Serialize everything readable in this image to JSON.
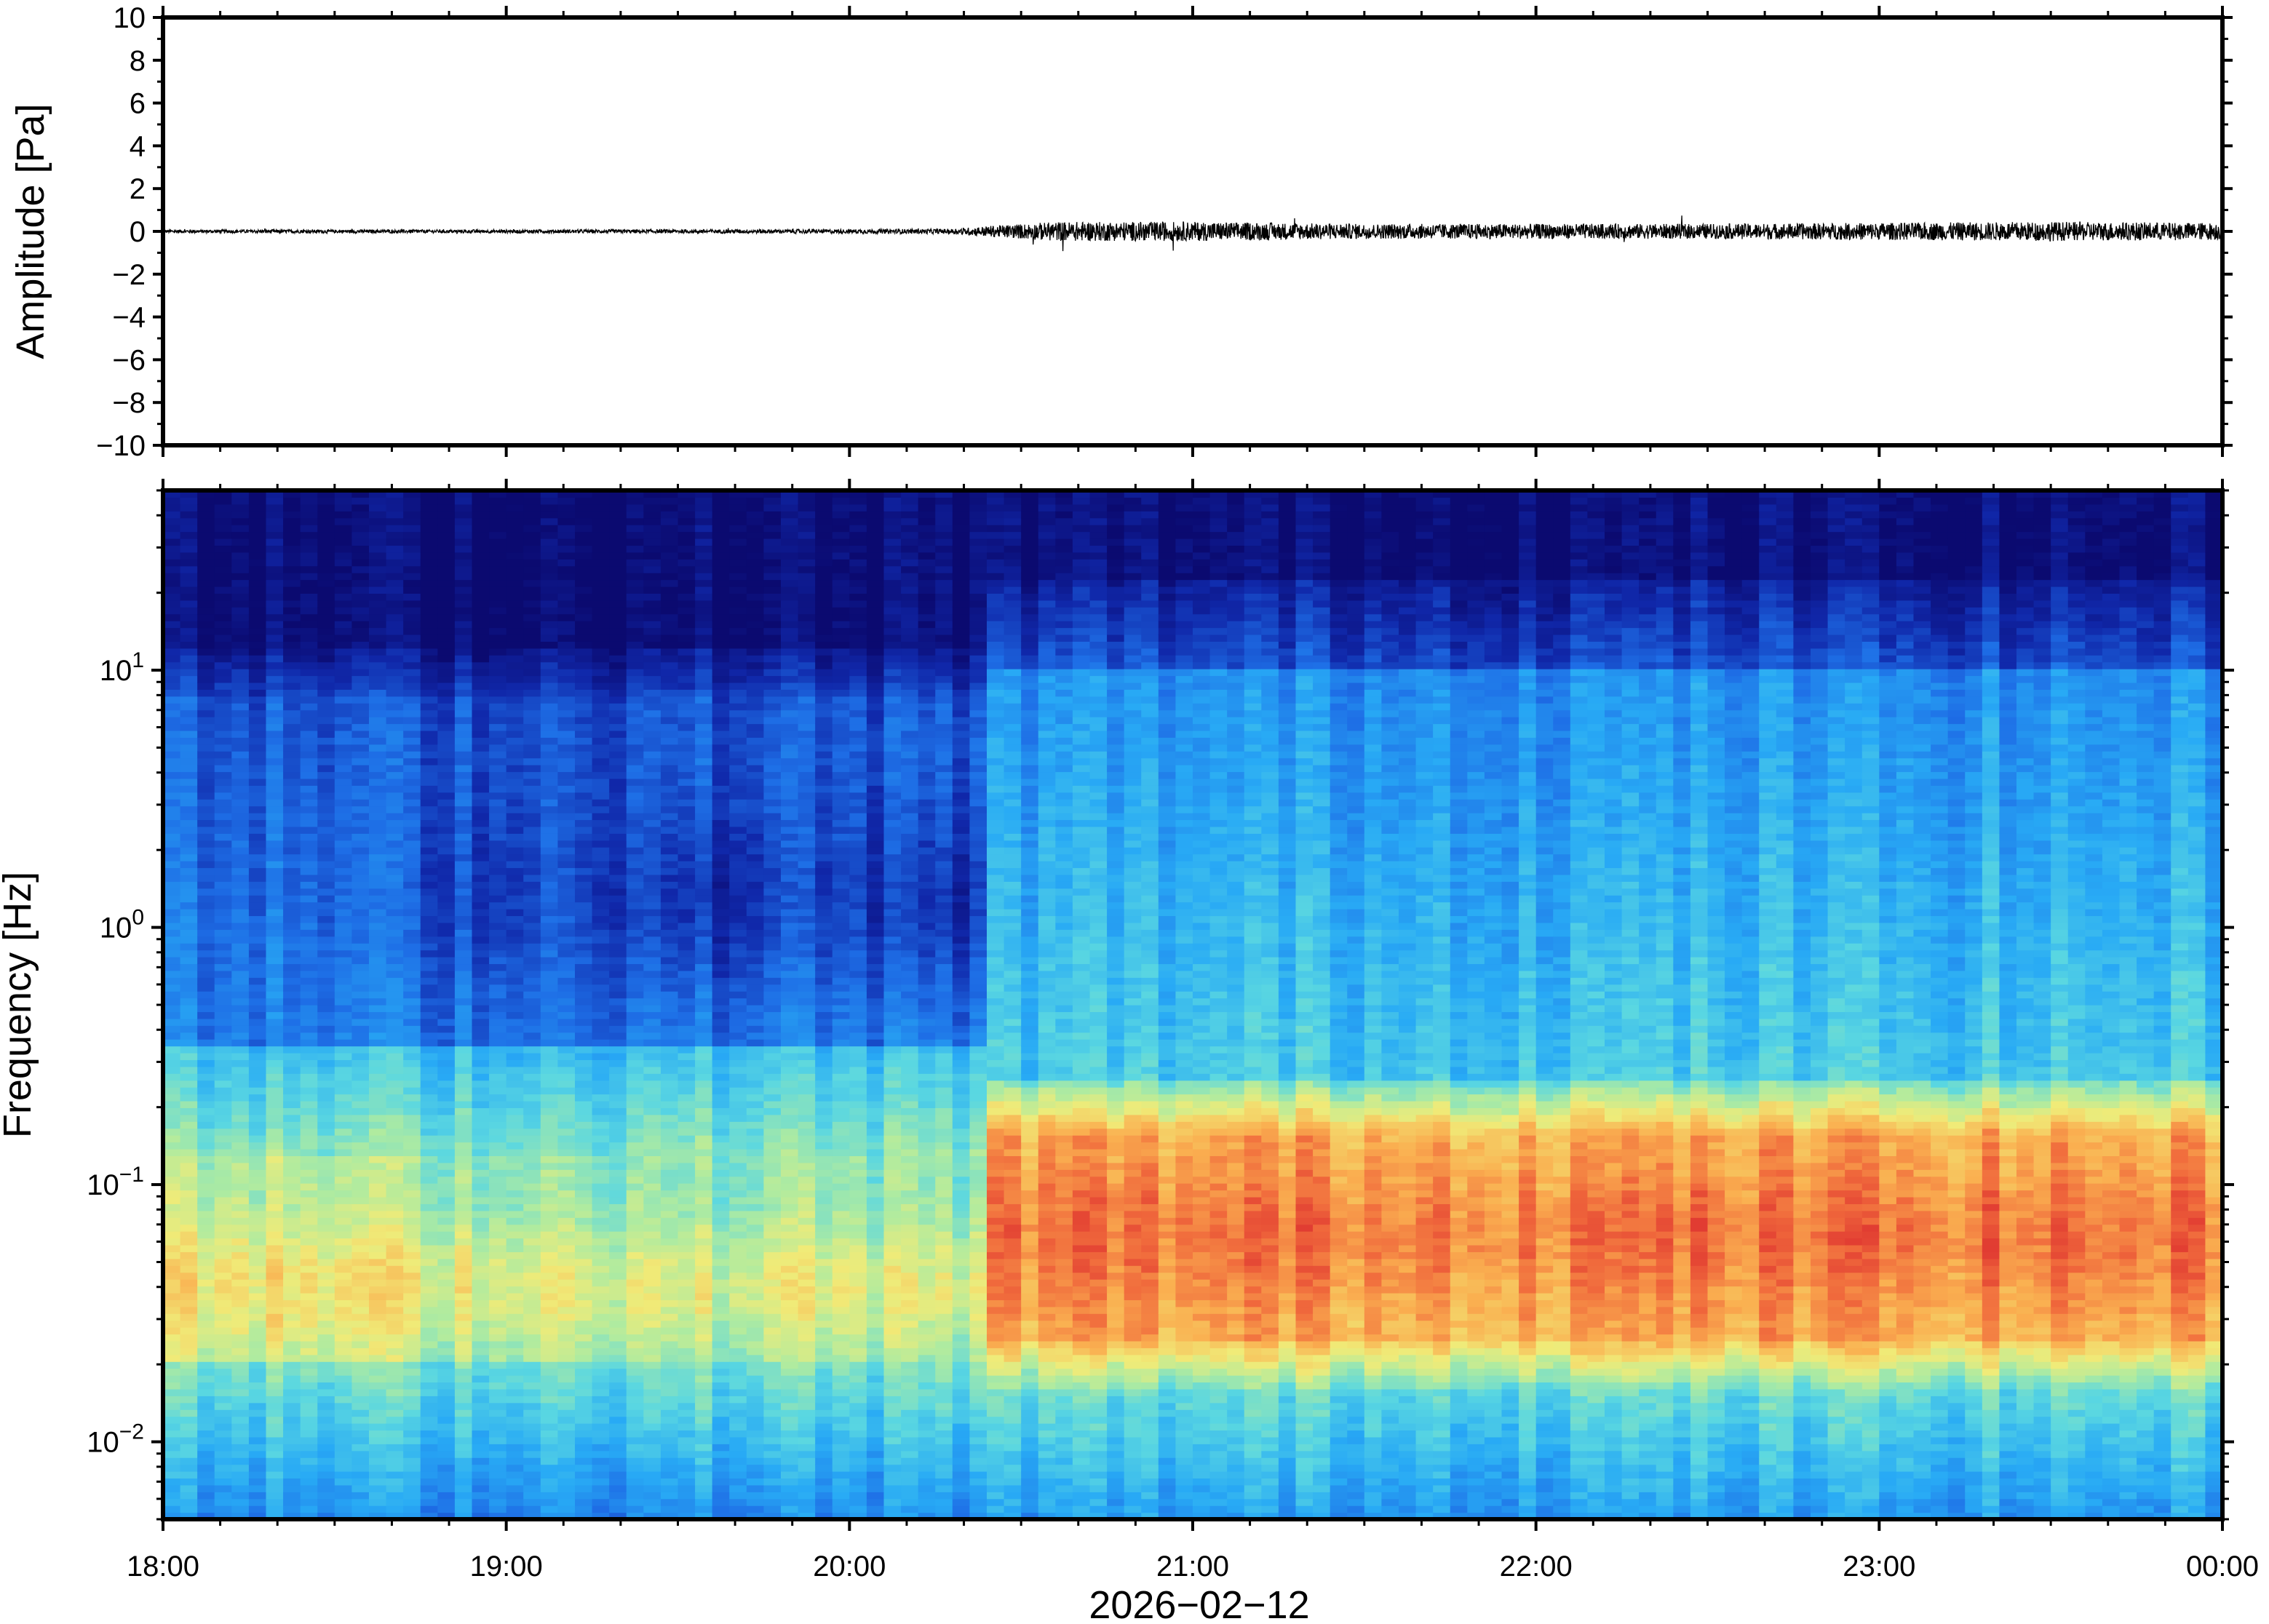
{
  "chart_data": [
    {
      "type": "line",
      "ylabel": "Amplitude [Pa]",
      "ylim": [
        -10,
        10
      ],
      "y_ticks": [
        "10",
        "8",
        "6",
        "4",
        "2",
        "0",
        "−2",
        "−4",
        "−6",
        "−8",
        "−10"
      ],
      "y_tick_values": [
        10,
        8,
        6,
        4,
        2,
        0,
        -2,
        -4,
        -6,
        -8,
        -10
      ],
      "x_range": [
        "18:00",
        "00:00"
      ],
      "grid": false,
      "series": [
        {
          "color": "#000000",
          "envelope_note_times_h": [
            0,
            1,
            2,
            2.3,
            2.4,
            2.6,
            3,
            3.5,
            4,
            4.5,
            5,
            5.5,
            6
          ],
          "amplitude_envelope_pa": [
            0.08,
            0.08,
            0.1,
            0.12,
            0.25,
            0.45,
            0.45,
            0.35,
            0.35,
            0.35,
            0.4,
            0.45,
            0.4
          ]
        }
      ]
    },
    {
      "type": "heatmap",
      "ylabel": "Frequency [Hz]",
      "xlabel": "2026−02−12",
      "y_scale": "log",
      "ylim": [
        0.005,
        50
      ],
      "y_ticks": [
        {
          "base": "10",
          "exp": "1",
          "value": 10
        },
        {
          "base": "10",
          "exp": "0",
          "value": 1
        },
        {
          "base": "10",
          "exp": "−1",
          "value": 0.1
        },
        {
          "base": "10",
          "exp": "−2",
          "value": 0.01
        }
      ],
      "x_ticks": [
        "18:00",
        "19:00",
        "20:00",
        "21:00",
        "22:00",
        "23:00",
        "00:00"
      ],
      "x_tick_hours": [
        0,
        1,
        2,
        3,
        4,
        5,
        6
      ],
      "colormap": "jet",
      "colors": {
        "low": "#0b0a70",
        "high": "#e8413a"
      },
      "regime_change_hour": 2.38,
      "description_values": {
        "quiet_period_hours": [
          0,
          2.38
        ],
        "active_period_hours": [
          2.38,
          6
        ],
        "microbarom_peak_hz": 0.06
      }
    }
  ]
}
